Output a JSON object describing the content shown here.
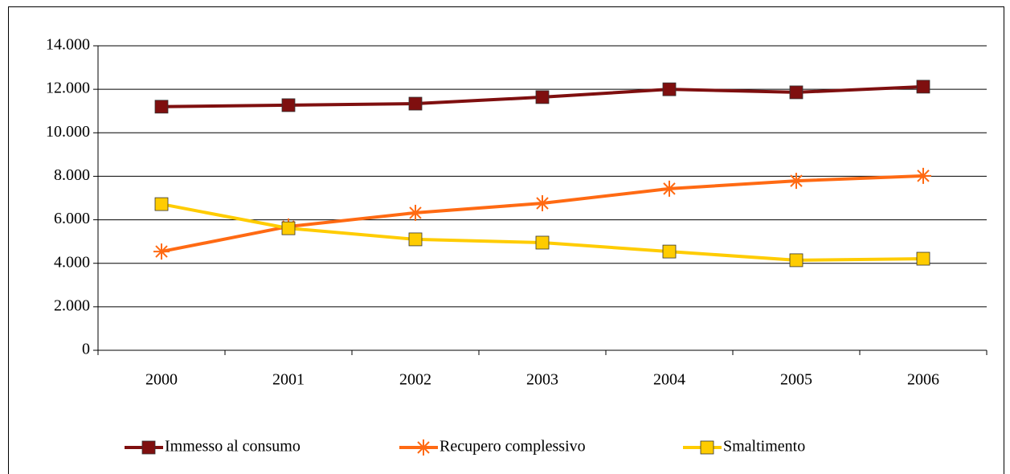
{
  "chart_data": {
    "type": "line",
    "categories": [
      "2000",
      "2001",
      "2002",
      "2003",
      "2004",
      "2005",
      "2006"
    ],
    "series": [
      {
        "name": "Immesso al consumo",
        "color": "#7f0f0f",
        "marker": "square",
        "values": [
          11200,
          11270,
          11340,
          11640,
          12000,
          11860,
          12120
        ]
      },
      {
        "name": "Recupero complessivo",
        "color": "#ff6a13",
        "marker": "star",
        "values": [
          4540,
          5690,
          6320,
          6760,
          7430,
          7790,
          8020
        ]
      },
      {
        "name": "Smaltimento",
        "color": "#ffcc00",
        "marker": "square",
        "values": [
          6720,
          5610,
          5100,
          4950,
          4540,
          4140,
          4210
        ]
      }
    ],
    "ylim": [
      0,
      14000
    ],
    "yticks": [
      0,
      {
        "value": 2000,
        "label": "2.000"
      },
      {
        "value": 4000,
        "label": "4.000"
      },
      {
        "value": 6000,
        "label": "6.000"
      },
      {
        "value": 8000,
        "label": "8.000"
      },
      {
        "value": 10000,
        "label": "10.000"
      },
      {
        "value": 12000,
        "label": "12.000"
      },
      {
        "value": 14000,
        "label": "14.000"
      }
    ],
    "grid": true,
    "legend": "bottom"
  }
}
